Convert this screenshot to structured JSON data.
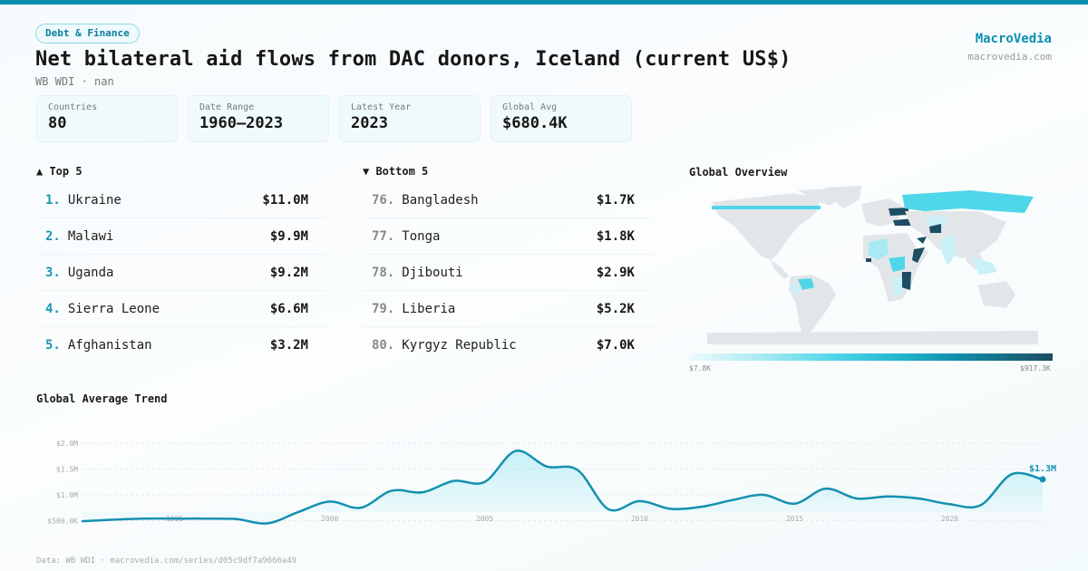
{
  "header": {
    "category_tag": "Debt & Finance",
    "title": "Net bilateral aid flows from DAC donors, Iceland (current US$)",
    "subtitle": "WB WDI · nan",
    "brand_name": "MacroVedia",
    "brand_url": "macrovedia.com"
  },
  "stats": [
    {
      "label": "Countries",
      "value": "80"
    },
    {
      "label": "Date Range",
      "value": "1960–2023"
    },
    {
      "label": "Latest Year",
      "value": "2023"
    },
    {
      "label": "Global Avg",
      "value": "$680.4K"
    }
  ],
  "top5": {
    "heading": "▲ Top 5",
    "items": [
      {
        "rank": "1.",
        "name": "Ukraine",
        "value": "$11.0M"
      },
      {
        "rank": "2.",
        "name": "Malawi",
        "value": "$9.9M"
      },
      {
        "rank": "3.",
        "name": "Uganda",
        "value": "$9.2M"
      },
      {
        "rank": "4.",
        "name": "Sierra Leone",
        "value": "$6.6M"
      },
      {
        "rank": "5.",
        "name": "Afghanistan",
        "value": "$3.2M"
      }
    ]
  },
  "bottom5": {
    "heading": "▼ Bottom 5",
    "items": [
      {
        "rank": "76.",
        "name": "Bangladesh",
        "value": "$1.7K"
      },
      {
        "rank": "77.",
        "name": "Tonga",
        "value": "$1.8K"
      },
      {
        "rank": "78.",
        "name": "Djibouti",
        "value": "$2.9K"
      },
      {
        "rank": "79.",
        "name": "Liberia",
        "value": "$5.2K"
      },
      {
        "rank": "80.",
        "name": "Kyrgyz Republic",
        "value": "$7.0K"
      }
    ]
  },
  "map": {
    "title": "Global Overview",
    "legend_min": "$7.8K",
    "legend_max": "$917.3K",
    "colors": {
      "land": "#e3e6e9",
      "low": "#c9f1f7",
      "mid": "#4fd6e8",
      "high": "#1c4d63"
    }
  },
  "trend": {
    "title": "Global Average Trend",
    "last_label": "$1.3M",
    "line_color": "#1590b0"
  },
  "footer": "Data: WB WDI · macrovedia.com/series/d05c9df7a9666a49",
  "chart_data": {
    "type": "line",
    "title": "Global Average Trend",
    "xlabel": "",
    "ylabel": "",
    "x": [
      1992,
      1993,
      1994,
      1995,
      1996,
      1997,
      1998,
      1999,
      2000,
      2001,
      2002,
      2003,
      2004,
      2005,
      2006,
      2007,
      2008,
      2009,
      2010,
      2011,
      2012,
      2013,
      2014,
      2015,
      2016,
      2017,
      2018,
      2019,
      2020,
      2021,
      2022,
      2023
    ],
    "series": [
      {
        "name": "Global average (US$)",
        "values": [
          490000,
          520000,
          540000,
          540000,
          540000,
          530000,
          450000,
          670000,
          870000,
          750000,
          1080000,
          1050000,
          1270000,
          1250000,
          1850000,
          1550000,
          1480000,
          720000,
          880000,
          730000,
          770000,
          900000,
          1000000,
          830000,
          1120000,
          930000,
          970000,
          930000,
          820000,
          800000,
          1400000,
          1300000
        ]
      }
    ],
    "yticks": [
      "$500.0K",
      "$1.0M",
      "$1.5M",
      "$2.0M"
    ],
    "xticks": [
      "1995",
      "2000",
      "2005",
      "2010",
      "2015",
      "2020"
    ],
    "ylim": [
      0,
      2000000
    ],
    "grid": true,
    "annotation": "$1.3M"
  }
}
